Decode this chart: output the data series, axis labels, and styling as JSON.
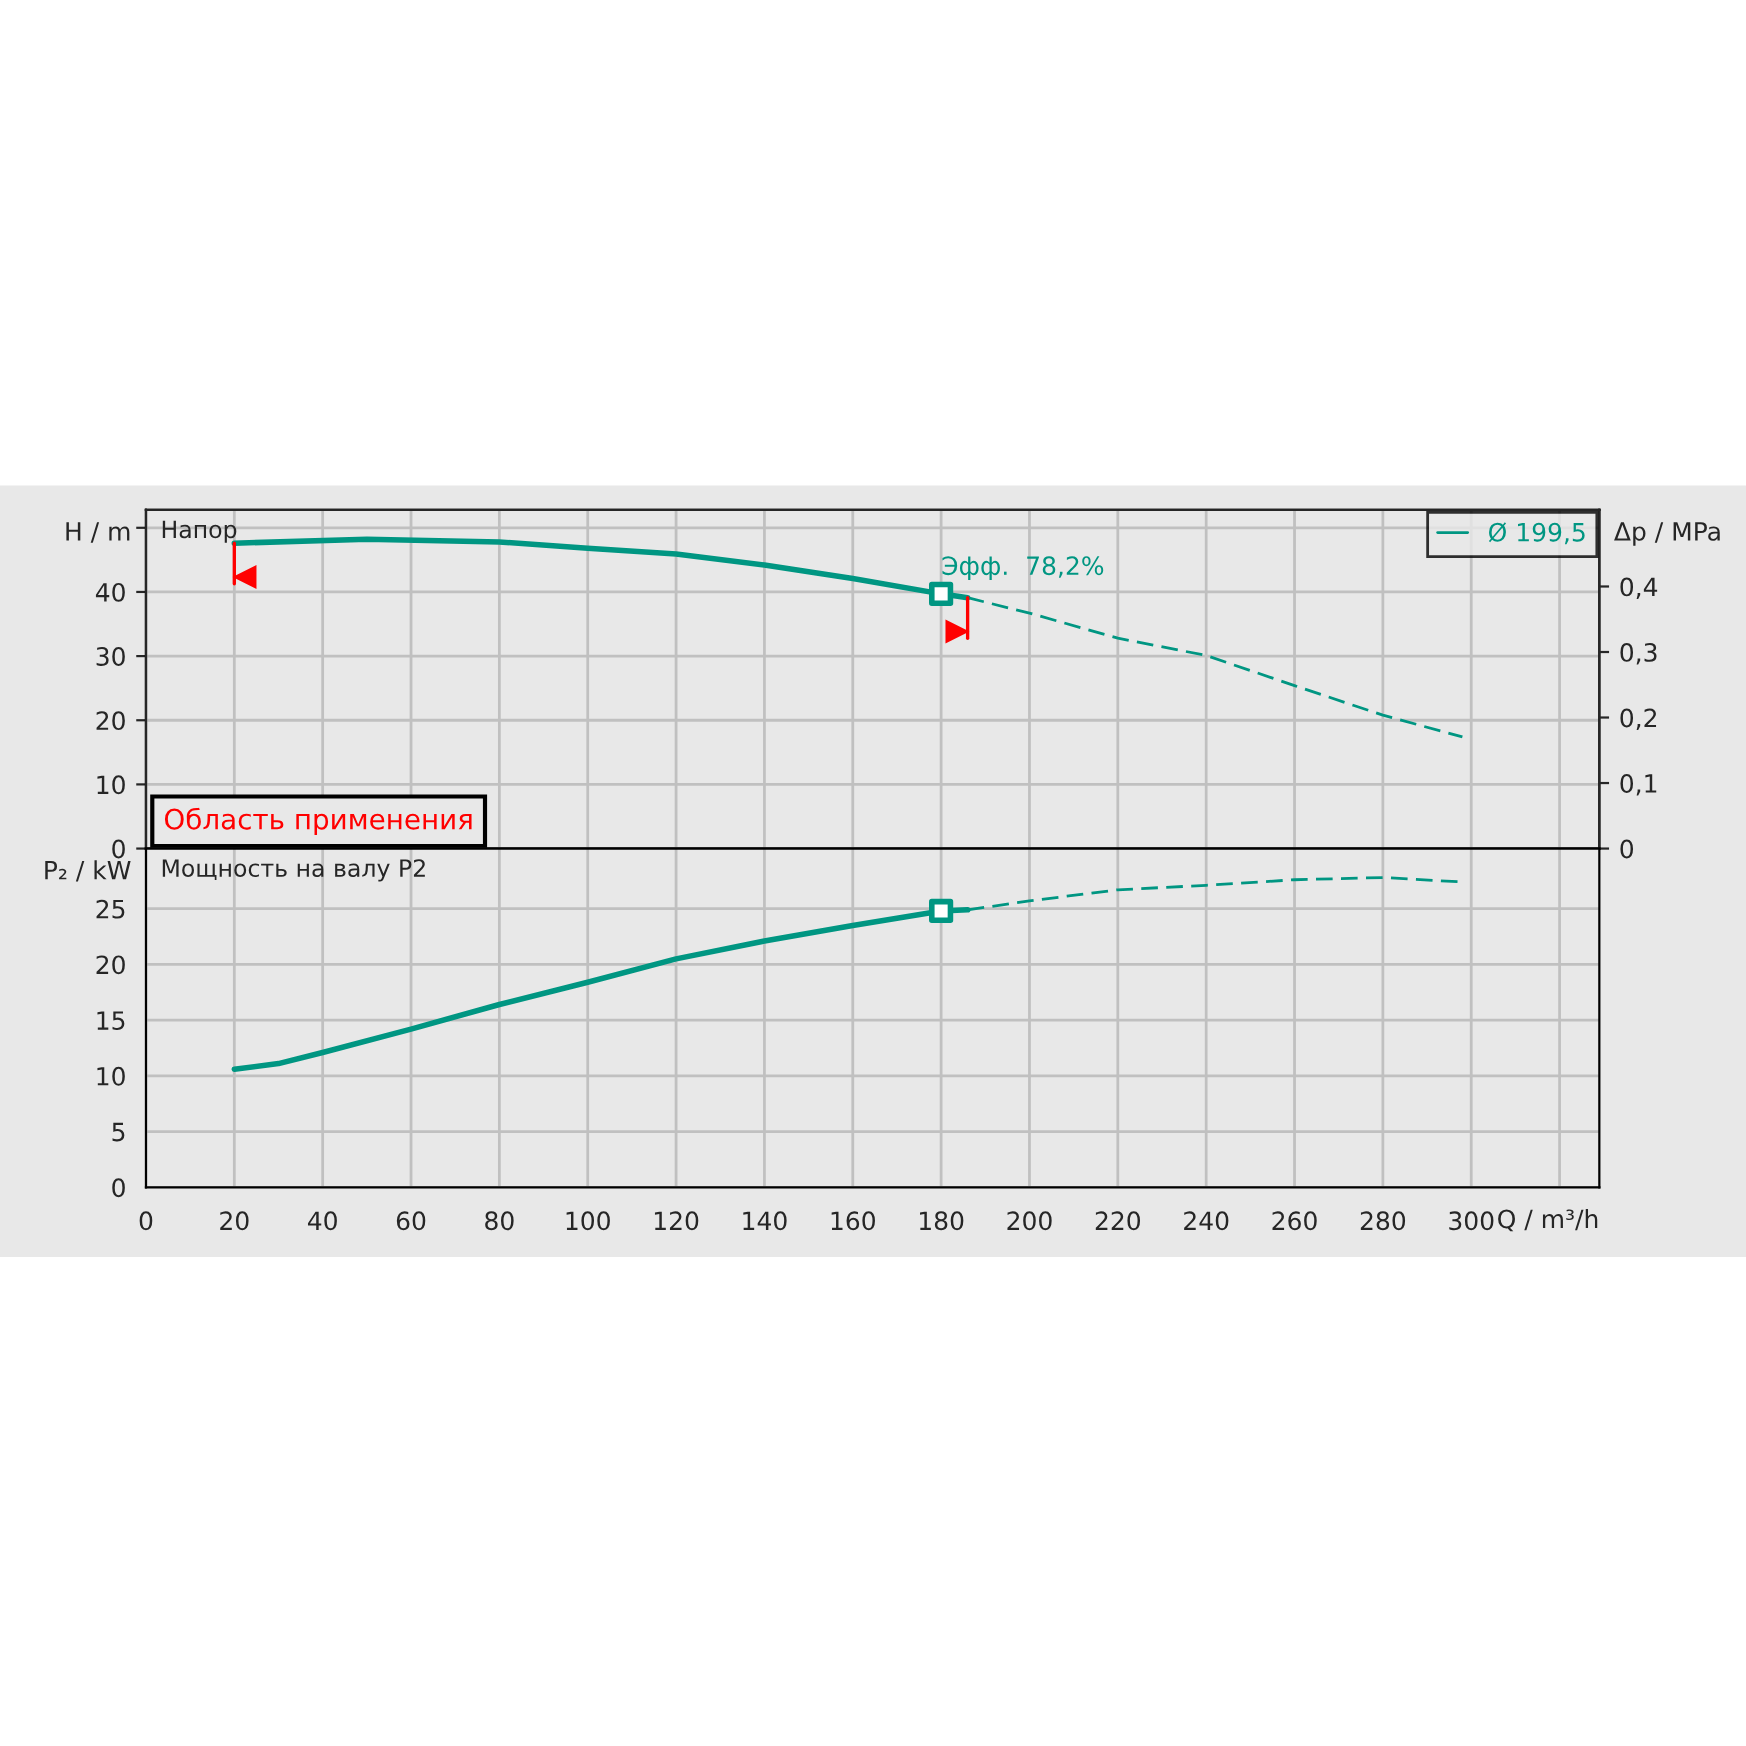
{
  "chart_data": [
    {
      "type": "line",
      "title": "Напор",
      "ylabel": "H / m",
      "y2label": "Δp / MPa",
      "xlim": [
        0,
        329
      ],
      "xticks": [
        0,
        20,
        40,
        60,
        80,
        100,
        120,
        140,
        160,
        180,
        200,
        220,
        240,
        260,
        280,
        300,
        320
      ],
      "ylim": [
        0,
        52.8
      ],
      "yticks": [
        0,
        10,
        20,
        30,
        40,
        {
          "value": 50,
          "label": null
        }
      ],
      "y2lim": [
        0,
        0.517
      ],
      "y2ticks": [
        {
          "value": 0,
          "label": "0"
        },
        {
          "value": 0.1,
          "label": "0,1"
        },
        {
          "value": 0.2,
          "label": "0,2"
        },
        {
          "value": 0.3,
          "label": "0,3"
        },
        {
          "value": 0.4,
          "label": "0,4"
        }
      ],
      "tick_labels": "y",
      "grid": true,
      "legend": "top right",
      "series": [
        {
          "name": "Ø 199,5",
          "color": "#009682",
          "line_style": "solid",
          "x": [
            20,
            50,
            80,
            100,
            120,
            140,
            160,
            180,
            186
          ],
          "values": [
            47.6,
            48.2,
            47.8,
            46.8,
            45.9,
            44.2,
            42.1,
            39.7,
            39.1
          ]
        },
        {
          "color": "#009682",
          "line_style": "dashed",
          "x": [
            186,
            200,
            220,
            240,
            260,
            280,
            298
          ],
          "values": [
            39.1,
            36.7,
            32.8,
            30.1,
            25.4,
            20.8,
            17.4
          ]
        },
        {
          "type": "scatter",
          "color": "#009682",
          "marker": "square",
          "x": [
            180
          ],
          "values": [
            39.7
          ]
        }
      ],
      "ref_lines": [
        {
          "axis": "x",
          "value": 20,
          "color": "#ff0000"
        },
        {
          "axis": "x",
          "value": 186,
          "color": "#ff0000"
        }
      ],
      "annotations": [
        {
          "text": "Эфф.  78,2%",
          "x": 180,
          "y": 39.7
        },
        "Область применения"
      ]
    },
    {
      "type": "line",
      "title": "Мощность на валу P2",
      "ylabel": "P₂ / kW",
      "xlabel": "Q / m³/h",
      "xlim": [
        0,
        329
      ],
      "xticks": [
        0,
        20,
        40,
        60,
        80,
        100,
        120,
        140,
        160,
        180,
        200,
        220,
        240,
        260,
        280,
        300,
        {
          "value": 320,
          "label": null
        }
      ],
      "ylim": [
        0,
        30.4
      ],
      "yticks": [
        0,
        5,
        10,
        15,
        20,
        25
      ],
      "grid": true,
      "series": [
        {
          "color": "#009682",
          "line_style": "solid",
          "x": [
            20,
            30,
            40,
            60,
            80,
            100,
            120,
            140,
            160,
            180,
            186
          ],
          "values": [
            10.6,
            11.1,
            12.1,
            14.2,
            16.4,
            18.4,
            20.5,
            22.1,
            23.5,
            24.8,
            24.9
          ]
        },
        {
          "color": "#009682",
          "line_style": "dashed",
          "x": [
            186,
            200,
            220,
            240,
            260,
            280,
            298
          ],
          "values": [
            24.9,
            25.7,
            26.7,
            27.1,
            27.6,
            27.8,
            27.4
          ]
        },
        {
          "type": "scatter",
          "color": "#009682",
          "marker": "square",
          "x": [
            180
          ],
          "values": [
            24.8
          ]
        }
      ]
    }
  ]
}
